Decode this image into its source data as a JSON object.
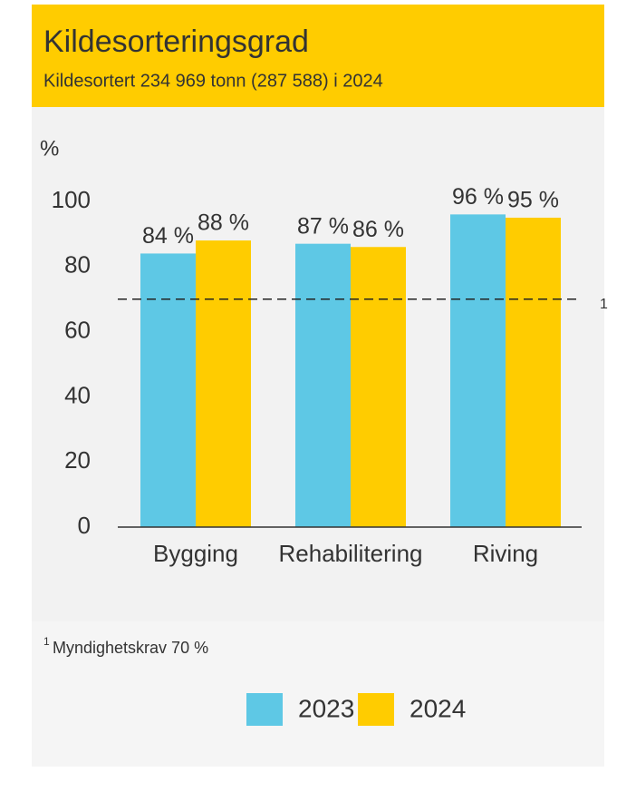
{
  "chart_data": {
    "type": "bar",
    "title": "Kildesorteringsgrad",
    "subtitle": "Kildesortert 234 969 tonn (287 588) i 2024",
    "y_label": "%",
    "categories": [
      "Bygging",
      "Rehabilitering",
      "Riving"
    ],
    "series": [
      {
        "name": "2023",
        "color": "#5ec8e5",
        "values": [
          84,
          87,
          96
        ],
        "value_labels": [
          "84 %",
          "87 %",
          "96 %"
        ]
      },
      {
        "name": "2024",
        "color": "#ffcc00",
        "values": [
          88,
          86,
          95
        ],
        "value_labels": [
          "88 %",
          "86 %",
          "95 %"
        ]
      }
    ],
    "ylim": [
      0,
      100
    ],
    "yticks": [
      0,
      20,
      40,
      60,
      80,
      100
    ],
    "reference_line": {
      "value": 70,
      "label": "1"
    },
    "footnote": {
      "marker": "1",
      "text": "Myndighetskrav 70 %"
    }
  }
}
